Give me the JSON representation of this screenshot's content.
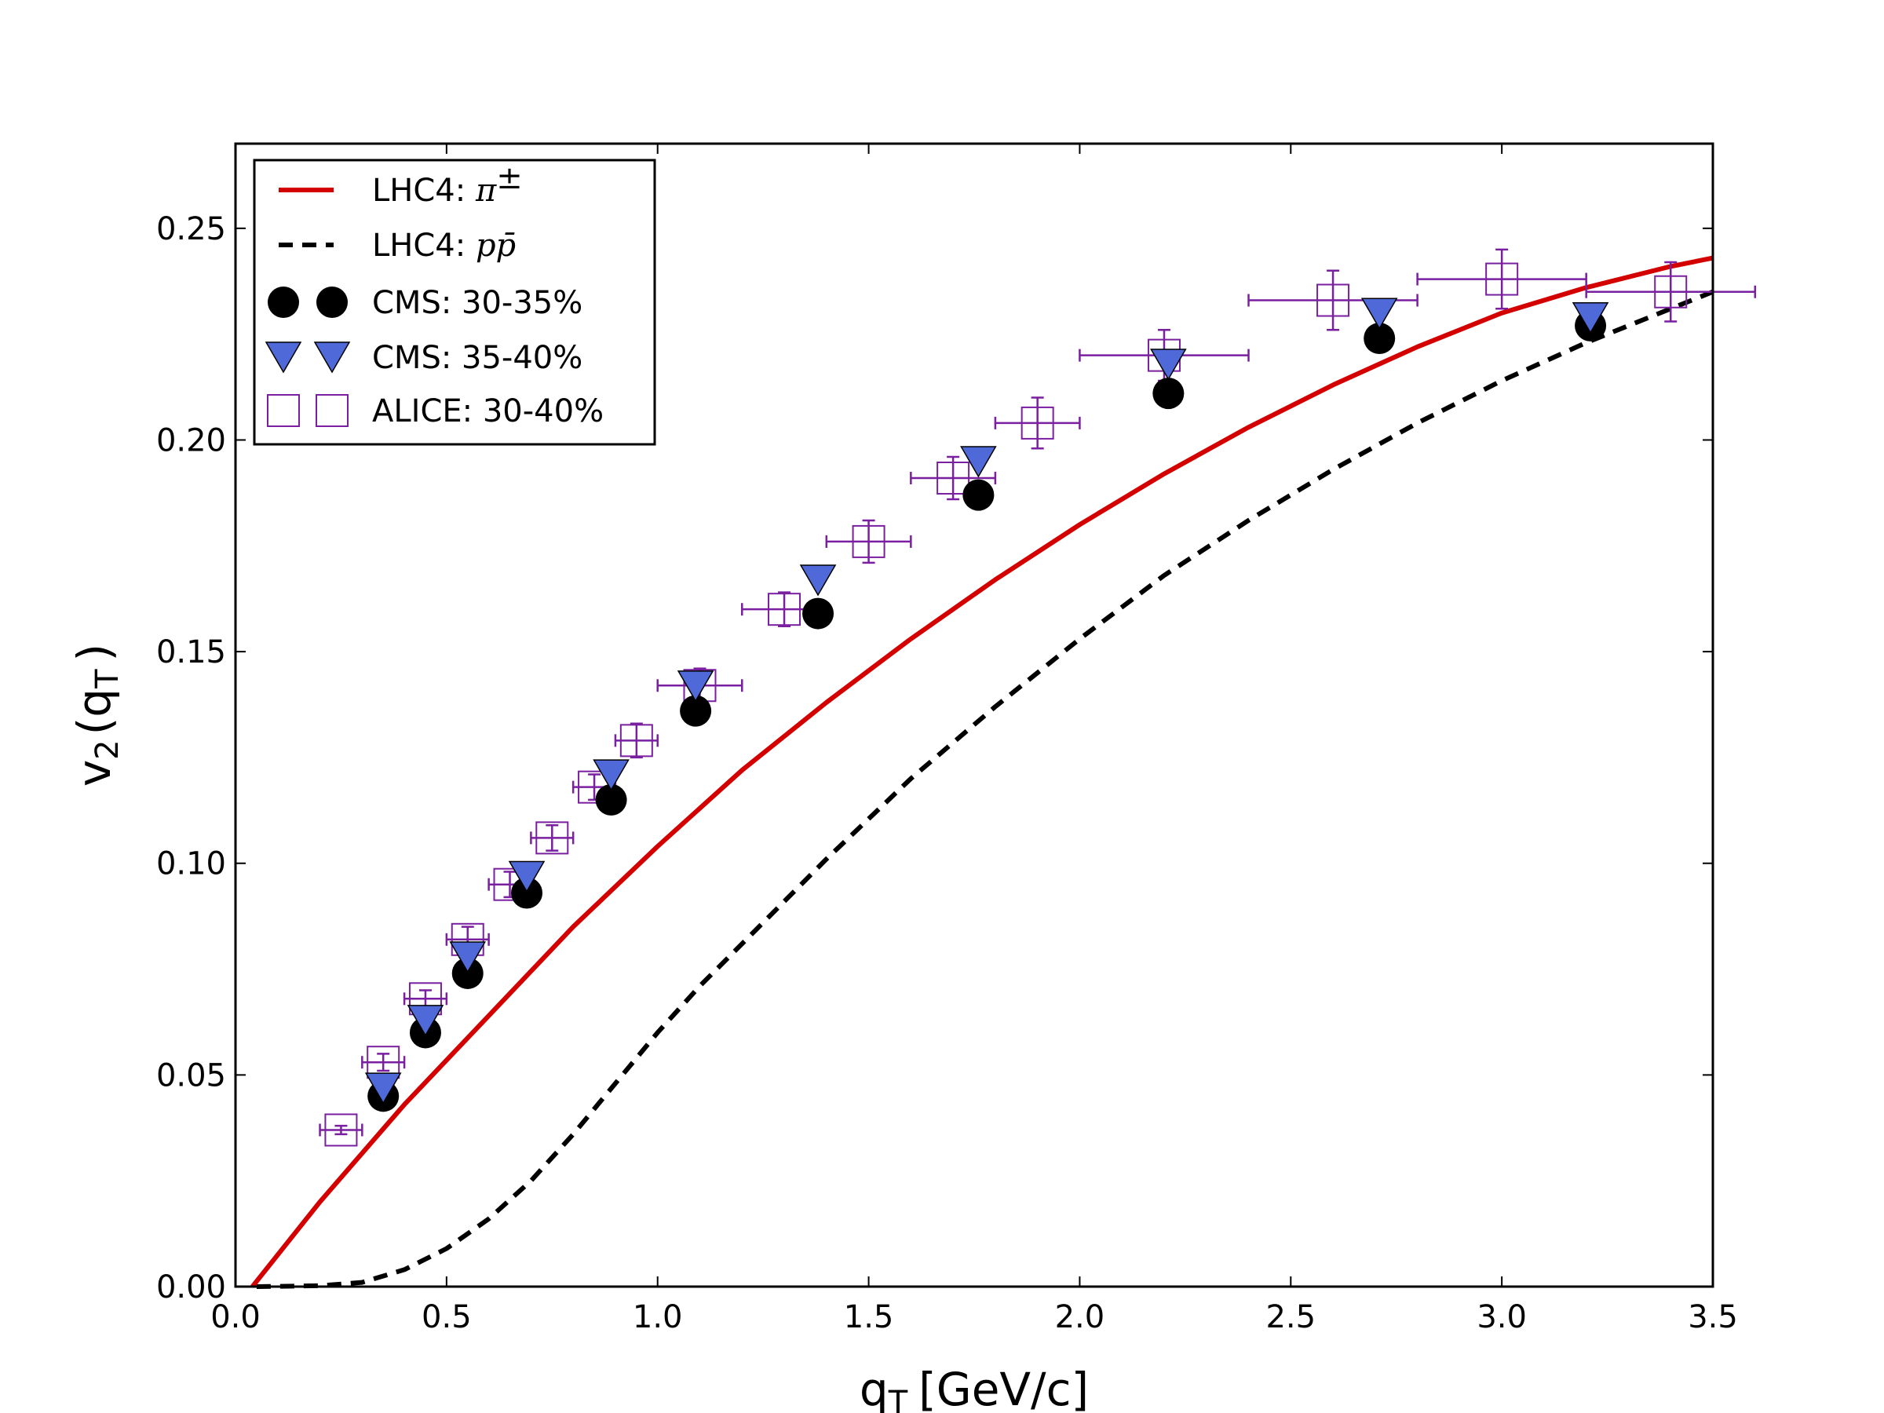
{
  "chart_data": {
    "type": "scatter",
    "xlabel": "q",
    "xlabel_sub": "T",
    "xlabel_unit": "[GeV/c]",
    "ylabel": "v",
    "ylabel_sub": "2",
    "ylabel_arg": "(q",
    "ylabel_arg_sub": "T",
    "ylabel_close": ")",
    "xlim": [
      0.0,
      3.5
    ],
    "ylim": [
      0.0,
      0.27
    ],
    "xticks": [
      0.0,
      0.5,
      1.0,
      1.5,
      2.0,
      2.5,
      3.0,
      3.5
    ],
    "xtick_labels": [
      "0.0",
      "0.5",
      "1.0",
      "1.5",
      "2.0",
      "2.5",
      "3.0",
      "3.5"
    ],
    "yticks": [
      0.0,
      0.05,
      0.1,
      0.15,
      0.2,
      0.25
    ],
    "ytick_labels": [
      "0.00",
      "0.05",
      "0.10",
      "0.15",
      "0.20",
      "0.25"
    ],
    "legend_position": "top-left",
    "series": [
      {
        "name": "LHC4: π±",
        "name_prefix": "LHC4: ",
        "name_math": "π",
        "name_sup": "±",
        "kind": "line",
        "style": "solid",
        "color": "#d40000",
        "x": [
          0.04,
          0.2,
          0.4,
          0.6,
          0.8,
          1.0,
          1.2,
          1.4,
          1.6,
          1.8,
          2.0,
          2.2,
          2.4,
          2.6,
          2.8,
          3.0,
          3.2,
          3.4,
          3.5
        ],
        "y": [
          0.0,
          0.02,
          0.043,
          0.064,
          0.085,
          0.104,
          0.122,
          0.138,
          0.153,
          0.167,
          0.18,
          0.192,
          0.203,
          0.213,
          0.222,
          0.23,
          0.236,
          0.241,
          0.243
        ]
      },
      {
        "name": "LHC4: pp̄",
        "name_prefix": "LHC4: ",
        "name_math": "pp̄",
        "name_sup": "",
        "kind": "line",
        "style": "dashed",
        "color": "#000000",
        "x": [
          0.05,
          0.2,
          0.3,
          0.4,
          0.5,
          0.6,
          0.7,
          0.8,
          0.9,
          1.0,
          1.1,
          1.2,
          1.4,
          1.6,
          1.8,
          2.0,
          2.2,
          2.4,
          2.6,
          2.8,
          3.0,
          3.2,
          3.4,
          3.5
        ],
        "y": [
          0.0,
          0.0002,
          0.001,
          0.004,
          0.009,
          0.016,
          0.025,
          0.036,
          0.048,
          0.06,
          0.071,
          0.081,
          0.101,
          0.12,
          0.137,
          0.153,
          0.168,
          0.181,
          0.193,
          0.204,
          0.214,
          0.223,
          0.231,
          0.235
        ]
      },
      {
        "name": "CMS: 30-35%",
        "kind": "marker",
        "marker": "circle",
        "color": "#000000",
        "x": [
          0.35,
          0.45,
          0.55,
          0.69,
          0.89,
          1.09,
          1.38,
          1.76,
          2.21,
          2.71,
          3.21
        ],
        "y": [
          0.045,
          0.06,
          0.074,
          0.093,
          0.115,
          0.136,
          0.159,
          0.187,
          0.211,
          0.224,
          0.227
        ]
      },
      {
        "name": "CMS: 35-40%",
        "kind": "marker",
        "marker": "triangle-down",
        "color": "#4f6ad8",
        "x": [
          0.35,
          0.45,
          0.55,
          0.69,
          0.89,
          1.09,
          1.38,
          1.76,
          2.21,
          2.71,
          3.21
        ],
        "y": [
          0.048,
          0.064,
          0.079,
          0.098,
          0.122,
          0.143,
          0.168,
          0.196,
          0.219,
          0.231,
          0.23
        ]
      },
      {
        "name": "ALICE: 30-40%",
        "kind": "marker",
        "marker": "square-open",
        "color": "#7a1fa0",
        "x": [
          0.25,
          0.35,
          0.45,
          0.55,
          0.65,
          0.75,
          0.85,
          0.95,
          1.1,
          1.3,
          1.5,
          1.7,
          1.9,
          2.2,
          2.6,
          3.0,
          3.4
        ],
        "y": [
          0.037,
          0.053,
          0.068,
          0.082,
          0.095,
          0.106,
          0.118,
          0.129,
          0.142,
          0.16,
          0.176,
          0.191,
          0.204,
          0.22,
          0.233,
          0.238,
          0.235
        ],
        "xerr": [
          0.05,
          0.05,
          0.05,
          0.05,
          0.05,
          0.05,
          0.05,
          0.05,
          0.1,
          0.1,
          0.1,
          0.1,
          0.1,
          0.2,
          0.2,
          0.2,
          0.2
        ],
        "yerr": [
          0.001,
          0.002,
          0.002,
          0.003,
          0.003,
          0.003,
          0.003,
          0.004,
          0.004,
          0.004,
          0.005,
          0.005,
          0.006,
          0.006,
          0.007,
          0.007,
          0.007
        ]
      }
    ]
  }
}
